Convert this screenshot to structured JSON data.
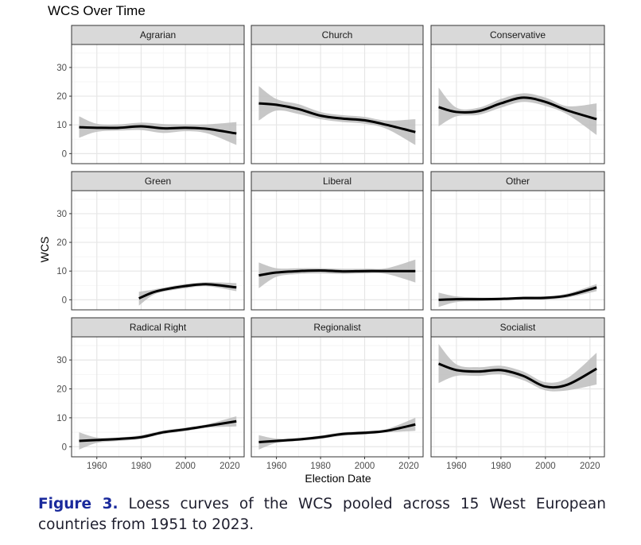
{
  "chart_data": {
    "type": "line",
    "title": "WCS Over Time",
    "xlabel": "Election Date",
    "ylabel": "WCS",
    "xlim": [
      1948.6,
      2026.5
    ],
    "ylim": [
      -3.5,
      38
    ],
    "xticks": [
      1960,
      1980,
      2000,
      2020
    ],
    "yticks": [
      0,
      10,
      20,
      30
    ],
    "grid": true,
    "band": "95% confidence interval (grey ribbon)",
    "panels": [
      {
        "name": "Agrarian",
        "x": [
          1952,
          1960,
          1970,
          1980,
          1990,
          2000,
          2010,
          2023
        ],
        "y": [
          9.2,
          9,
          9,
          9.5,
          8.8,
          9,
          8.6,
          7
        ],
        "lower": [
          5.5,
          7.6,
          8,
          8.2,
          7.2,
          7.8,
          7,
          3
        ],
        "upper": [
          13,
          10.4,
          10.2,
          10.8,
          10.3,
          10.2,
          10.2,
          11
        ]
      },
      {
        "name": "Church",
        "x": [
          1952,
          1960,
          1970,
          1980,
          1990,
          2000,
          2010,
          2023
        ],
        "y": [
          17.5,
          17,
          15.5,
          13.2,
          12.2,
          11.6,
          10,
          7.5
        ],
        "lower": [
          11.5,
          15,
          13.8,
          12,
          11,
          10.4,
          8.6,
          3
        ],
        "upper": [
          23.5,
          19,
          17.2,
          14.5,
          13.4,
          12.8,
          11.5,
          12
        ]
      },
      {
        "name": "Conservative",
        "x": [
          1952,
          1960,
          1970,
          1980,
          1990,
          2000,
          2010,
          2023
        ],
        "y": [
          16.2,
          14.5,
          14.8,
          17.5,
          19.5,
          18,
          15,
          12
        ],
        "lower": [
          9.5,
          13,
          13.5,
          16,
          18,
          16.6,
          13.6,
          6.5
        ],
        "upper": [
          23,
          16,
          16,
          19,
          21,
          19.5,
          16.5,
          17.5
        ]
      },
      {
        "name": "Green",
        "x": [
          1979,
          1985,
          1990,
          2000,
          2010,
          2023
        ],
        "y": [
          0.5,
          2.5,
          3.5,
          4.8,
          5.4,
          4.3
        ],
        "lower": [
          -2,
          1.5,
          2.8,
          4,
          4.7,
          3
        ],
        "upper": [
          2.8,
          3.5,
          4.2,
          5.5,
          6.1,
          5.8
        ]
      },
      {
        "name": "Liberal",
        "x": [
          1952,
          1960,
          1970,
          1980,
          1990,
          2000,
          2010,
          2023
        ],
        "y": [
          8.5,
          9.5,
          10,
          10.2,
          9.9,
          10,
          10,
          10
        ],
        "lower": [
          4,
          8,
          9,
          9.2,
          9,
          9.2,
          9,
          6
        ],
        "upper": [
          13,
          11,
          11,
          11,
          10.8,
          10.8,
          11,
          14
        ]
      },
      {
        "name": "Other",
        "x": [
          1952,
          1960,
          1970,
          1980,
          1990,
          2000,
          2010,
          2023
        ],
        "y": [
          0,
          0.2,
          0.2,
          0.3,
          0.6,
          0.7,
          1.5,
          4.3
        ],
        "lower": [
          -2.5,
          -0.8,
          -0.5,
          -0.2,
          0.1,
          0.1,
          0.8,
          3
        ],
        "upper": [
          2.5,
          1.2,
          0.8,
          0.8,
          1.1,
          1.2,
          2.2,
          5.5
        ]
      },
      {
        "name": "Radical Right",
        "x": [
          1952,
          1960,
          1970,
          1980,
          1990,
          2000,
          2010,
          2023
        ],
        "y": [
          2,
          2.3,
          2.7,
          3.3,
          5,
          6,
          7.2,
          8.8
        ],
        "lower": [
          -1,
          1.3,
          2,
          2.7,
          4.4,
          5.4,
          6.6,
          7
        ],
        "upper": [
          5,
          3.2,
          3.2,
          4,
          5.6,
          6.6,
          7.8,
          10.5
        ]
      },
      {
        "name": "Regionalist",
        "x": [
          1952,
          1960,
          1970,
          1980,
          1990,
          2000,
          2010,
          2023
        ],
        "y": [
          1.6,
          2,
          2.5,
          3.3,
          4.4,
          4.8,
          5.5,
          7.7
        ],
        "lower": [
          -1,
          1.3,
          2,
          2.7,
          3.8,
          4.2,
          4.9,
          5.5
        ],
        "upper": [
          4,
          2.8,
          3,
          3.9,
          5,
          5.4,
          6.1,
          10
        ]
      },
      {
        "name": "Socialist",
        "x": [
          1952,
          1960,
          1970,
          1980,
          1990,
          2000,
          2010,
          2023
        ],
        "y": [
          28.7,
          26.5,
          26,
          26.5,
          24.5,
          20.8,
          21.5,
          27
        ],
        "lower": [
          22,
          24.5,
          24.5,
          25,
          23,
          19.5,
          19.5,
          21.5
        ],
        "upper": [
          35.5,
          28.5,
          27.5,
          28,
          26,
          22.3,
          23.8,
          32.5
        ]
      }
    ]
  },
  "caption": {
    "label": "Figure 3.",
    "text": " Loess curves of the WCS pooled across 15 West European countries from 1951 to 2023."
  },
  "colors": {
    "line": "#000000",
    "band": "#bdbdbd",
    "strip": "#d9d9d9",
    "caption_label": "#1a2a9c"
  }
}
